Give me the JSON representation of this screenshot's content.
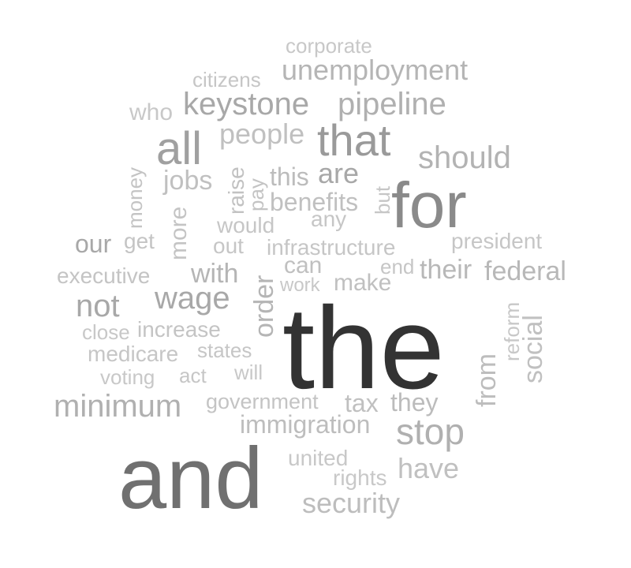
{
  "words": [
    {
      "text": "the",
      "color": "#333333"
    },
    {
      "text": "and",
      "color": "#707070"
    },
    {
      "text": "for",
      "color": "#8a8a8a"
    },
    {
      "text": "that",
      "color": "#9a9a9a"
    },
    {
      "text": "all",
      "color": "#a0a0a0"
    },
    {
      "text": "keystone",
      "color": "#a8a8a8"
    },
    {
      "text": "pipeline",
      "color": "#b0b0b0"
    },
    {
      "text": "unemployment",
      "color": "#b5b5b5"
    },
    {
      "text": "corporate",
      "color": "#c8c8c8"
    },
    {
      "text": "citizens",
      "color": "#c6c6c6"
    },
    {
      "text": "who",
      "color": "#c8c8c8"
    },
    {
      "text": "people",
      "color": "#c0c0c0"
    },
    {
      "text": "should",
      "color": "#b3b3b3"
    },
    {
      "text": "this",
      "color": "#bcbcbc"
    },
    {
      "text": "are",
      "color": "#a8a8a8"
    },
    {
      "text": "jobs",
      "color": "#c0c0c0"
    },
    {
      "text": "money",
      "color": "#c4c4c4"
    },
    {
      "text": "raise",
      "color": "#c2c2c2"
    },
    {
      "text": "pay",
      "color": "#c4c4c4"
    },
    {
      "text": "benefits",
      "color": "#c0c0c0"
    },
    {
      "text": "but",
      "color": "#c6c6c6"
    },
    {
      "text": "any",
      "color": "#c6c6c6"
    },
    {
      "text": "would",
      "color": "#c6c6c6"
    },
    {
      "text": "more",
      "color": "#c4c4c4"
    },
    {
      "text": "our",
      "color": "#a8a8a8"
    },
    {
      "text": "get",
      "color": "#c4c4c4"
    },
    {
      "text": "out",
      "color": "#c6c6c6"
    },
    {
      "text": "infrastructure",
      "color": "#c6c6c6"
    },
    {
      "text": "president",
      "color": "#c6c6c6"
    },
    {
      "text": "can",
      "color": "#c0c0c0"
    },
    {
      "text": "end",
      "color": "#c6c6c6"
    },
    {
      "text": "executive",
      "color": "#c4c4c4"
    },
    {
      "text": "with",
      "color": "#b5b5b5"
    },
    {
      "text": "order",
      "color": "#b5b5b5"
    },
    {
      "text": "their",
      "color": "#b8b8b8"
    },
    {
      "text": "federal",
      "color": "#b8b8b8"
    },
    {
      "text": "work",
      "color": "#c8c8c8"
    },
    {
      "text": "make",
      "color": "#c0c0c0"
    },
    {
      "text": "not",
      "color": "#a8a8a8"
    },
    {
      "text": "wage",
      "color": "#a8a8a8"
    },
    {
      "text": "reform",
      "color": "#c8c8c8"
    },
    {
      "text": "social",
      "color": "#c0c0c0"
    },
    {
      "text": "from",
      "color": "#bdbdbd"
    },
    {
      "text": "close",
      "color": "#c8c8c8"
    },
    {
      "text": "increase",
      "color": "#c4c4c4"
    },
    {
      "text": "medicare",
      "color": "#c6c6c6"
    },
    {
      "text": "states",
      "color": "#c6c6c6"
    },
    {
      "text": "voting",
      "color": "#c8c8c8"
    },
    {
      "text": "act",
      "color": "#c6c6c6"
    },
    {
      "text": "will",
      "color": "#c8c8c8"
    },
    {
      "text": "minimum",
      "color": "#b0b0b0"
    },
    {
      "text": "government",
      "color": "#c4c4c4"
    },
    {
      "text": "tax",
      "color": "#c0c0c0"
    },
    {
      "text": "they",
      "color": "#bcbcbc"
    },
    {
      "text": "immigration",
      "color": "#bdbdbd"
    },
    {
      "text": "stop",
      "color": "#b0b0b0"
    },
    {
      "text": "united",
      "color": "#c8c8c8"
    },
    {
      "text": "have",
      "color": "#c0c0c0"
    },
    {
      "text": "rights",
      "color": "#c8c8c8"
    },
    {
      "text": "security",
      "color": "#bdbdbd"
    }
  ]
}
